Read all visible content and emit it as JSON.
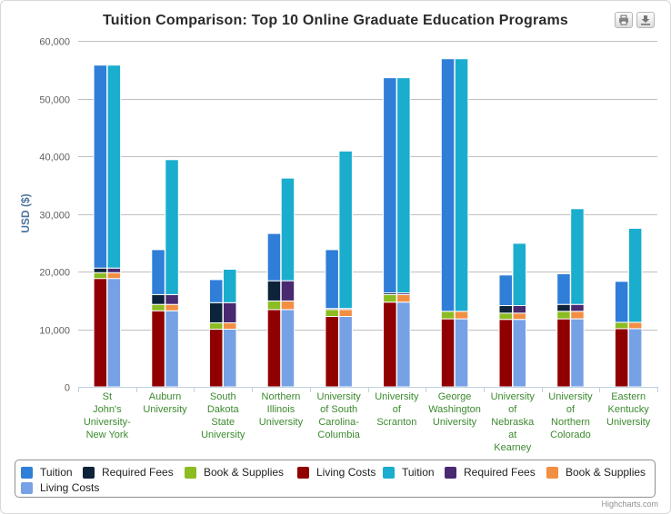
{
  "export": {
    "print_icon": "printer-icon",
    "download_icon": "download-icon"
  },
  "credits": "Highcharts.com",
  "colors": {
    "tuition_a": "#2f7ed8",
    "fees_a": "#0d233a",
    "books_a": "#8bbc21",
    "living_a": "#910000",
    "tuition_b": "#1aadce",
    "fees_b": "#492970",
    "books_b": "#f28f43",
    "living_b": "#77a1e5"
  },
  "chart_data": {
    "type": "bar",
    "stacking": "normal",
    "title": "Tuition Comparison: Top 10 Online Graduate Education Programs",
    "ylabel": "USD ($)",
    "ylim": [
      0,
      60000
    ],
    "yticks": [
      "0",
      "10,000",
      "20,000",
      "30,000",
      "40,000",
      "50,000",
      "60,000"
    ],
    "categories": [
      [
        "St",
        "John's",
        "University-",
        "New York"
      ],
      [
        "Auburn",
        "University"
      ],
      [
        "South",
        "Dakota",
        "State",
        "University"
      ],
      [
        "Northern",
        "Illinois",
        "University"
      ],
      [
        "University",
        "of South",
        "Carolina-",
        "Columbia"
      ],
      [
        "University",
        "of",
        "Scranton"
      ],
      [
        "George",
        "Washington",
        "University"
      ],
      [
        "University",
        "of",
        "Nebraska",
        "at",
        "Kearney"
      ],
      [
        "University",
        "of",
        "Northern",
        "Colorado"
      ],
      [
        "Eastern",
        "Kentucky",
        "University"
      ]
    ],
    "stacks": [
      {
        "name": "A",
        "series": [
          {
            "name": "Living Costs",
            "color": "#910000",
            "values": [
              18800,
              13200,
              10000,
              13400,
              12200,
              14700,
              11800,
              11700,
              11800,
              10100
            ]
          },
          {
            "name": "Book & Supplies",
            "color": "#8bbc21",
            "values": [
              1000,
              1100,
              1100,
              1500,
              1200,
              1300,
              1300,
              1100,
              1300,
              1100
            ]
          },
          {
            "name": "Required Fees",
            "color": "#0d233a",
            "values": [
              800,
              1700,
              3500,
              3500,
              200,
              300,
              0,
              1300,
              1200,
              0
            ]
          },
          {
            "name": "Tuition",
            "color": "#2f7ed8",
            "values": [
              35200,
              7800,
              4000,
              8200,
              10200,
              37300,
              43800,
              5300,
              5300,
              7100
            ]
          }
        ]
      },
      {
        "name": "B",
        "series": [
          {
            "name": "Living Costs",
            "color": "#77a1e5",
            "values": [
              18800,
              13200,
              10000,
              13400,
              12200,
              14700,
              11800,
              11700,
              11800,
              10100
            ]
          },
          {
            "name": "Book & Supplies",
            "color": "#f28f43",
            "values": [
              1000,
              1100,
              1100,
              1500,
              1200,
              1300,
              1300,
              1100,
              1300,
              1100
            ]
          },
          {
            "name": "Required Fees",
            "color": "#492970",
            "values": [
              800,
              1700,
              3500,
              3500,
              200,
              300,
              0,
              1300,
              1200,
              0
            ]
          },
          {
            "name": "Tuition",
            "color": "#1aadce",
            "values": [
              35200,
              23400,
              5800,
              17800,
              27300,
              37300,
              43800,
              10800,
              16600,
              16300
            ]
          }
        ]
      }
    ],
    "legend": [
      {
        "label": "Tuition",
        "color": "#2f7ed8"
      },
      {
        "label": "Required Fees",
        "color": "#0d233a"
      },
      {
        "label": "Book & Supplies",
        "color": "#8bbc21"
      },
      {
        "label": "Living Costs",
        "color": "#910000"
      },
      {
        "label": "Tuition",
        "color": "#1aadce"
      },
      {
        "label": "Required Fees",
        "color": "#492970"
      },
      {
        "label": "Book & Supplies",
        "color": "#f28f43"
      },
      {
        "label": "Living Costs",
        "color": "#77a1e5"
      }
    ]
  }
}
